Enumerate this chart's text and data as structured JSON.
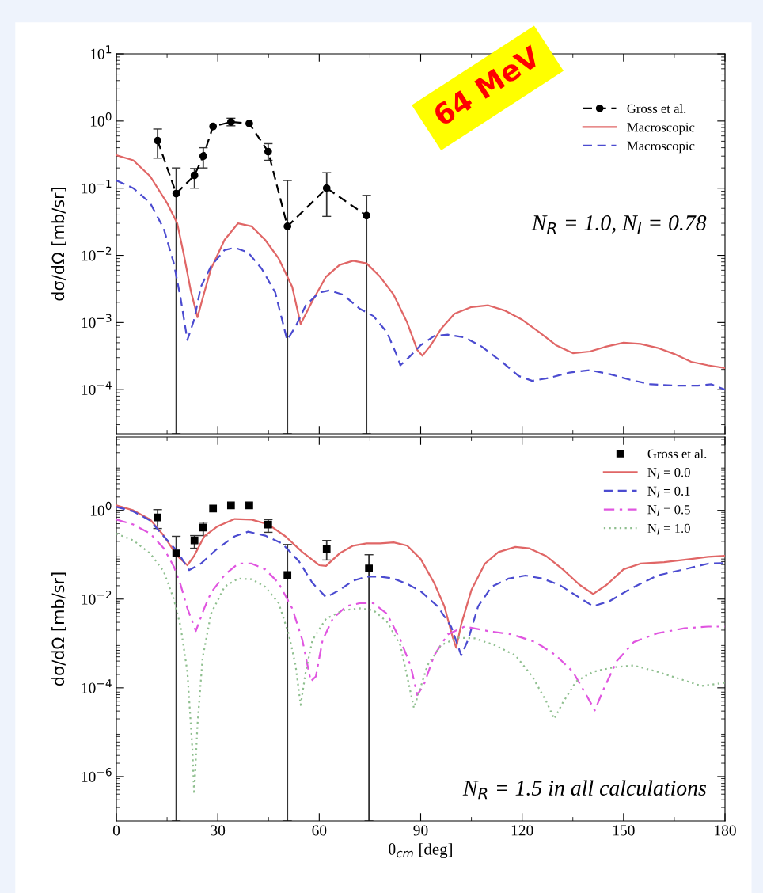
{
  "chart_data": [
    {
      "type": "line",
      "ylabel": "dσ/dΩ [mb/sr]",
      "log": "y",
      "xlim": [
        0,
        180
      ],
      "xticks": [
        0,
        30,
        60,
        90,
        120,
        150,
        180
      ],
      "ylim": [
        2.2e-05,
        10
      ],
      "yticks": [
        {
          "value": 0.0001,
          "label": "10$^{−4}$"
        },
        {
          "value": 0.001,
          "label": "10$^{−3}$"
        },
        {
          "value": 0.01,
          "label": "10$^{−2}$"
        },
        {
          "value": 0.1,
          "label": "10$^{−1}$"
        },
        {
          "value": 1,
          "label": "10$^{0}$"
        },
        {
          "value": 10,
          "label": "10$^{1}$"
        }
      ],
      "tick_labels": "y",
      "legend": "top right",
      "grid": false,
      "annotations": [
        "64 MeV",
        "N$_{R}$ = 1.0, N$_{I}$ = 0.78"
      ],
      "series": [
        {
          "name": "Gross et al.",
          "type": "line",
          "color": "#000000",
          "line_style": "dashed",
          "marker": "circle",
          "x": [
            12.2,
            17.7,
            23.1,
            25.7,
            28.6,
            33.9,
            39.3,
            44.9,
            50.6,
            62.2,
            74.0
          ],
          "values": [
            0.51,
            0.083,
            0.155,
            0.3,
            0.83,
            0.97,
            0.92,
            0.35,
            0.027,
            0.1,
            0.039
          ],
          "errors": [
            [
              0.28,
              0.76
            ],
            [
              2.2e-05,
              0.2
            ],
            [
              0.1,
              0.196
            ],
            [
              0.2,
              0.4
            ],
            null,
            [
              0.85,
              1.1
            ],
            null,
            [
              0.26,
              0.46
            ],
            [
              2.2e-05,
              0.13
            ],
            [
              0.038,
              0.17
            ],
            [
              2.2e-05,
              0.078
            ]
          ]
        },
        {
          "name": "Macroscopic",
          "type": "line",
          "color": "#e06666",
          "line_style": "solid",
          "x": [
            0,
            5,
            10,
            15,
            18,
            20,
            22,
            24,
            26,
            28,
            32,
            36,
            40,
            44,
            48,
            52,
            54.5,
            58,
            62,
            66,
            70,
            74,
            78,
            82,
            86,
            89,
            90.5,
            93,
            96,
            100,
            105,
            110,
            115,
            120,
            125,
            130,
            135,
            140,
            145,
            150,
            155,
            160,
            165,
            170,
            175,
            180
          ],
          "values": [
            0.31,
            0.26,
            0.15,
            0.06,
            0.03,
            0.01,
            0.003,
            0.0012,
            0.0028,
            0.0063,
            0.017,
            0.03,
            0.027,
            0.017,
            0.009,
            0.0034,
            0.00095,
            0.0021,
            0.0048,
            0.0072,
            0.0083,
            0.0076,
            0.0048,
            0.0026,
            0.001,
            0.00039,
            0.00032,
            0.00046,
            0.0008,
            0.00135,
            0.0017,
            0.0018,
            0.0015,
            0.0011,
            0.00072,
            0.00046,
            0.00035,
            0.00037,
            0.00044,
            0.0005,
            0.00048,
            0.00042,
            0.00034,
            0.00026,
            0.00023,
            0.00021
          ]
        },
        {
          "name": "Macroscopic",
          "type": "line",
          "color": "#4b4bd0",
          "line_style": "dashed",
          "x": [
            0,
            5,
            10,
            14,
            17,
            19,
            21,
            23,
            25,
            28,
            32,
            35,
            39,
            43,
            47,
            50.5,
            53,
            56,
            60,
            63,
            67,
            72,
            76,
            80,
            83,
            84,
            87,
            90,
            94,
            98,
            103,
            108,
            114,
            119,
            123,
            128,
            134,
            140,
            146,
            152,
            158,
            165,
            172,
            176,
            180
          ],
          "values": [
            0.13,
            0.1,
            0.06,
            0.025,
            0.0076,
            0.0023,
            0.00055,
            0.0011,
            0.0034,
            0.0069,
            0.012,
            0.013,
            0.011,
            0.0063,
            0.0028,
            0.00055,
            0.00087,
            0.0018,
            0.0028,
            0.003,
            0.0026,
            0.0016,
            0.00125,
            0.00072,
            0.00032,
            0.00023,
            0.00032,
            0.00046,
            0.00063,
            0.00066,
            0.0006,
            0.00044,
            0.00026,
            0.00016,
            0.000135,
            0.00015,
            0.00018,
            0.000195,
            0.00017,
            0.00014,
            0.00012,
            0.000115,
            0.000115,
            0.00012,
            0.0001
          ]
        }
      ]
    },
    {
      "type": "line",
      "ylabel": "dσ/dΩ [mb/sr]",
      "xlabel": "θ$_{cm}$ [deg]",
      "log": "y",
      "xlim": [
        0,
        180
      ],
      "xticks": [
        0,
        30,
        60,
        90,
        120,
        150,
        180
      ],
      "ylim": [
        1e-07,
        45
      ],
      "yticks": [
        {
          "value": 1e-06,
          "label": "10$^{−6}$"
        },
        {
          "value": 0.0001,
          "label": "10$^{−4}$"
        },
        {
          "value": 0.01,
          "label": "10$^{−2}$"
        },
        {
          "value": 1,
          "label": "10$^{0}$"
        }
      ],
      "legend": "top right",
      "grid": false,
      "annotations": [
        "N$_{R}$ = 1.5 in all calculations"
      ],
      "series": [
        {
          "name": "Gross et al.",
          "type": "scatter",
          "color": "#000000",
          "marker": "square",
          "x": [
            12.2,
            17.7,
            23.1,
            25.7,
            28.6,
            33.9,
            39.3,
            44.9,
            50.6,
            62.2,
            74.7
          ],
          "values": [
            0.69,
            0.107,
            0.21,
            0.41,
            1.1,
            1.3,
            1.3,
            0.48,
            0.035,
            0.135,
            0.049
          ],
          "errors": [
            [
              0.39,
              1.04
            ],
            [
              1e-07,
              0.26
            ],
            [
              0.14,
              0.27
            ],
            [
              0.27,
              0.54
            ],
            null,
            null,
            null,
            [
              0.32,
              0.62
            ],
            [
              1e-07,
              0.17
            ],
            [
              0.076,
              0.21
            ],
            [
              1e-07,
              0.1
            ]
          ]
        },
        {
          "name": "N$_{I}$ = 0.0",
          "type": "line",
          "color": "#e06666",
          "line_style": "solid",
          "x": [
            0,
            5,
            10,
            14,
            18,
            21,
            23,
            26,
            30,
            35,
            40,
            45,
            50,
            55,
            60,
            62,
            66,
            70,
            74,
            78,
            82,
            86,
            90,
            94,
            97,
            99.5,
            100.5,
            102,
            105,
            109,
            113,
            118,
            122,
            127,
            132,
            137,
            141,
            145,
            150,
            155,
            162,
            170,
            175,
            180
          ],
          "values": [
            1.3,
            1.0,
            0.62,
            0.27,
            0.094,
            0.058,
            0.094,
            0.26,
            0.44,
            0.64,
            0.62,
            0.48,
            0.26,
            0.115,
            0.058,
            0.056,
            0.107,
            0.16,
            0.18,
            0.18,
            0.19,
            0.16,
            0.08,
            0.023,
            0.0069,
            0.00135,
            0.0008,
            0.0027,
            0.016,
            0.063,
            0.115,
            0.15,
            0.14,
            0.094,
            0.047,
            0.021,
            0.013,
            0.021,
            0.047,
            0.063,
            0.068,
            0.08,
            0.09,
            0.094
          ]
        },
        {
          "name": "N$_{I}$ = 0.1",
          "type": "line",
          "color": "#4b4bd0",
          "line_style": "dashed",
          "x": [
            0,
            5,
            10,
            14,
            18,
            21.5,
            25,
            30,
            35,
            39,
            44,
            49,
            54,
            58,
            62,
            66,
            70,
            74,
            78,
            82,
            86,
            90,
            95,
            99,
            102,
            104,
            107,
            111,
            116,
            121,
            126,
            131,
            136,
            141,
            146,
            152,
            160,
            168,
            175,
            180
          ],
          "values": [
            1.2,
            0.95,
            0.59,
            0.26,
            0.12,
            0.045,
            0.063,
            0.14,
            0.26,
            0.33,
            0.27,
            0.18,
            0.071,
            0.023,
            0.011,
            0.016,
            0.026,
            0.032,
            0.032,
            0.029,
            0.022,
            0.015,
            0.0069,
            0.0024,
            0.00054,
            0.0012,
            0.0069,
            0.019,
            0.029,
            0.034,
            0.029,
            0.021,
            0.012,
            0.0069,
            0.0091,
            0.017,
            0.034,
            0.047,
            0.063,
            0.065
          ]
        },
        {
          "name": "N$_{I}$ = 0.5",
          "type": "line",
          "color": "#e055e0",
          "line_style": "dashdot",
          "x": [
            0,
            5,
            10,
            14,
            17,
            19,
            21,
            23.5,
            26,
            28,
            32,
            36,
            40,
            44,
            48,
            52,
            55,
            57.5,
            59,
            61,
            64,
            68,
            72,
            76,
            80,
            84,
            87,
            89,
            91,
            94,
            98,
            103,
            110,
            117,
            124,
            130,
            135,
            139,
            141.5,
            144,
            148,
            153,
            160,
            168,
            175,
            180
          ],
          "values": [
            0.62,
            0.48,
            0.3,
            0.14,
            0.054,
            0.021,
            0.0062,
            0.0019,
            0.0062,
            0.014,
            0.035,
            0.063,
            0.063,
            0.047,
            0.023,
            0.0062,
            0.0012,
            0.00014,
            0.00018,
            0.0012,
            0.0036,
            0.0069,
            0.0081,
            0.0081,
            0.0047,
            0.0012,
            0.00032,
            6.9e-05,
            0.00012,
            0.00054,
            0.0016,
            0.0024,
            0.0019,
            0.0016,
            0.00107,
            0.00054,
            0.00023,
            6.9e-05,
            3.1e-05,
            9e-05,
            0.0004,
            0.00107,
            0.0017,
            0.0022,
            0.0024,
            0.0024
          ]
        },
        {
          "name": "N$_{I}$ = 1.0",
          "type": "line",
          "color": "#8fbf8f",
          "line_style": "dotted",
          "x": [
            0,
            5,
            10,
            14,
            17,
            19,
            21,
            22.5,
            23,
            24,
            25.5,
            28,
            32,
            36,
            40,
            44,
            48,
            51,
            53,
            54.5,
            56,
            58,
            62,
            67,
            72,
            76,
            80,
            84,
            86.5,
            88,
            89.5,
            92,
            96,
            101,
            106,
            112,
            118,
            123,
            127,
            129.5,
            132,
            136,
            141,
            147,
            153,
            160,
            167,
            173,
            180
          ],
          "values": [
            0.3,
            0.21,
            0.107,
            0.042,
            0.01,
            0.0024,
            0.00023,
            4e-06,
            4e-07,
            1.5e-05,
            0.00047,
            0.0047,
            0.019,
            0.029,
            0.028,
            0.019,
            0.0081,
            0.0016,
            0.00032,
            4.1e-05,
            0.00023,
            0.0012,
            0.0036,
            0.0056,
            0.0062,
            0.0056,
            0.0031,
            0.00091,
            0.00012,
            3.5e-05,
            7.9e-05,
            0.00032,
            0.00091,
            0.00135,
            0.0013,
            0.00091,
            0.00054,
            0.00018,
            5.2e-05,
            2e-05,
            4.6e-05,
            0.00014,
            0.00023,
            0.00029,
            0.00032,
            0.00023,
            0.000155,
            0.00011,
            0.00013
          ]
        }
      ]
    }
  ]
}
